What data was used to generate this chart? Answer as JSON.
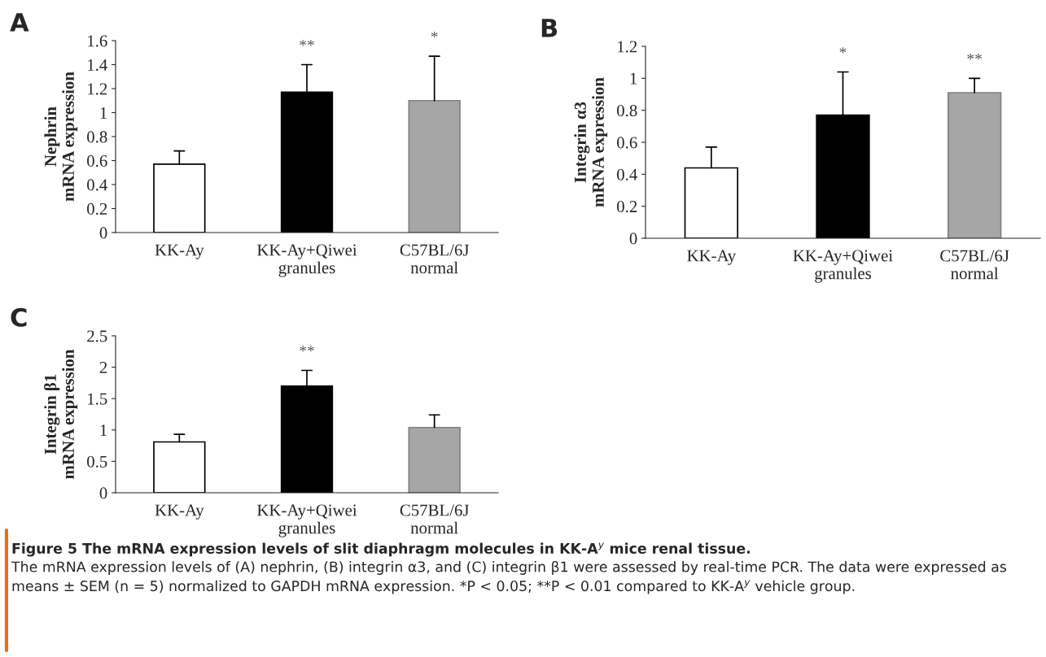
{
  "chart_data": [
    {
      "type": "bar",
      "title": "A",
      "ylabel": "Nephrin\nmRNA expression",
      "categories": [
        "KK-Ay",
        "KK-Ay+Qiwei\ngranules",
        "C57BL/6J\nnormal"
      ],
      "values": [
        0.57,
        1.17,
        1.1
      ],
      "colors": [
        "#ffffff",
        "#000000",
        "#a6a6a6"
      ],
      "errors": [
        [
          0.57,
          0.68
        ],
        [
          1.17,
          1.4
        ],
        [
          1.1,
          1.47
        ]
      ],
      "ylim": [
        0,
        1.6
      ],
      "yticks": [
        0,
        0.2,
        0.4,
        0.6,
        0.8,
        1,
        1.2,
        1.4,
        1.6
      ],
      "grid": false,
      "legend": false,
      "annotations": [
        {
          "text": "**",
          "x": "KK-Ay+Qiwei\ngranules",
          "y": 1.4
        },
        {
          "text": "*",
          "x": "C57BL/6J\nnormal",
          "y": 1.47
        }
      ]
    },
    {
      "type": "bar",
      "title": "B",
      "ylabel": "Integrin α3\nmRNA expression",
      "categories": [
        "KK-Ay",
        "KK-Ay+Qiwei\ngranules",
        "C57BL/6J\nnormal"
      ],
      "values": [
        0.44,
        0.77,
        0.91
      ],
      "colors": [
        "#ffffff",
        "#000000",
        "#a6a6a6"
      ],
      "errors": [
        [
          0.44,
          0.57
        ],
        [
          0.77,
          1.04
        ],
        [
          0.91,
          1.0
        ]
      ],
      "ylim": [
        0,
        1.2
      ],
      "yticks": [
        0,
        0.2,
        0.4,
        0.6,
        0.8,
        1,
        1.2
      ],
      "grid": false,
      "legend": false,
      "annotations": [
        {
          "text": "*",
          "x": "KK-Ay+Qiwei\ngranules",
          "y": 1.04
        },
        {
          "text": "**",
          "x": "C57BL/6J\nnormal",
          "y": 1.0
        }
      ]
    },
    {
      "type": "bar",
      "title": "C",
      "ylabel": "Integrin β1\nmRNA expression",
      "categories": [
        "KK-Ay",
        "KK-Ay+Qiwei\ngranules",
        "C57BL/6J\nnormal"
      ],
      "values": [
        0.81,
        1.7,
        1.04
      ],
      "colors": [
        "#ffffff",
        "#000000",
        "#a6a6a6"
      ],
      "errors": [
        [
          0.81,
          0.93
        ],
        [
          1.7,
          1.95
        ],
        [
          1.04,
          1.24
        ]
      ],
      "ylim": [
        0,
        2.5
      ],
      "yticks": [
        0,
        0.5,
        1,
        1.5,
        2,
        2.5
      ],
      "grid": false,
      "legend": false,
      "annotations": [
        {
          "text": "**",
          "x": "KK-Ay+Qiwei\ngranules",
          "y": 1.95
        },
        "Figure 5 The mRNA expression levels of slit diaphragm molecules in KK-A$^{y}$ mice renal tissue.",
        "The mRNA expression levels of (A) nephrin, (B) integrin α3, and (C) integrin β1 were assessed by real-time PCR. The data were expressed as means ± SEM (n = 5) normalized to GAPDH mRNA expression. *P < 0.05; **P < 0.01 compared to KK-A$^{y}$ vehicle group."
      ]
    }
  ]
}
